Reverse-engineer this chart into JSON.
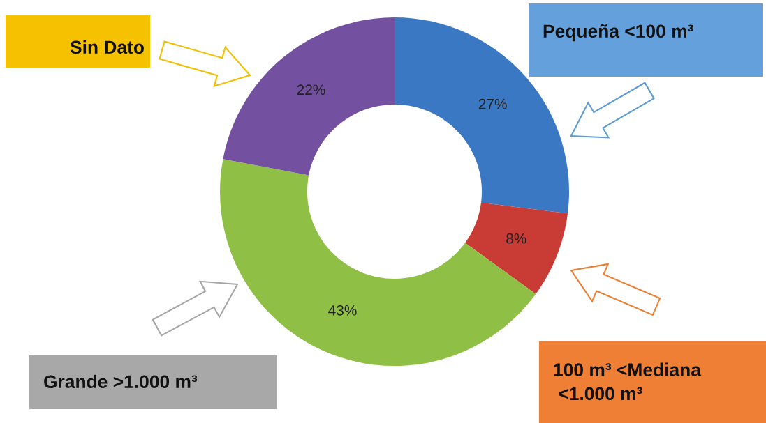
{
  "chart_data": {
    "type": "donut",
    "categories": [
      "Pequeña <100 m³",
      "100 m³ <Mediana\n <1.000 m³",
      "Grande >1.000 m³",
      "Sin Dato"
    ],
    "values": [
      27,
      8,
      43,
      22
    ],
    "colors": [
      "#3b78c3",
      "#c93b35",
      "#8fbf45",
      "#7450a0"
    ],
    "value_labels": [
      "27%",
      "8%",
      "43%",
      "22%"
    ],
    "legend": false
  }
}
